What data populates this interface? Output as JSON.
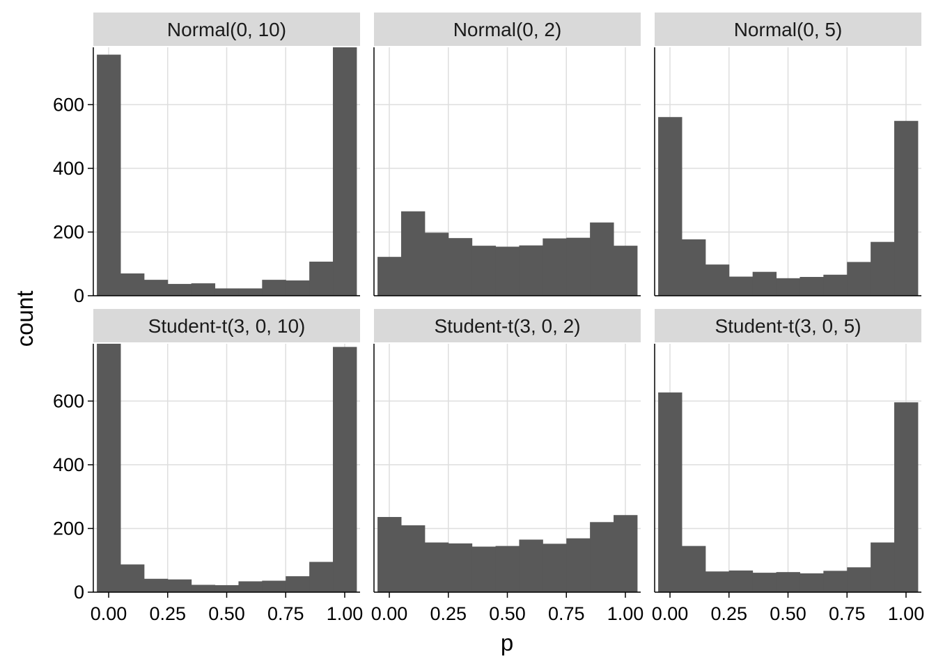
{
  "chart_data": {
    "type": "bar",
    "facet_layout": {
      "rows": 2,
      "cols": 3
    },
    "xlabel": "p",
    "ylabel": "count",
    "xlim": [
      -0.065,
      1.065
    ],
    "ylim": [
      0,
      780
    ],
    "x_ticks": [
      0,
      0.25,
      0.5,
      0.75,
      1
    ],
    "x_tick_labels": [
      "0.00",
      "0.25",
      "0.50",
      "0.75",
      "1.00"
    ],
    "y_ticks": [
      0,
      200,
      400,
      600
    ],
    "y_tick_labels": [
      "0",
      "200",
      "400",
      "600"
    ],
    "bin_centers": [
      0,
      0.1,
      0.2,
      0.3,
      0.4,
      0.5,
      0.6,
      0.7,
      0.8,
      0.9,
      1.0
    ],
    "bin_width": 0.1,
    "grid": true,
    "colors": {
      "bar": "#595959",
      "strip": "#d9d9d9",
      "grid": "#dedede",
      "axis": "#000000"
    },
    "panels": [
      {
        "title": "Normal(0, 10)",
        "values": [
          757,
          70,
          50,
          37,
          39,
          23,
          23,
          50,
          48,
          107,
          780
        ]
      },
      {
        "title": "Normal(0, 2)",
        "values": [
          122,
          265,
          198,
          181,
          157,
          154,
          158,
          180,
          182,
          230,
          157
        ]
      },
      {
        "title": "Normal(0, 5)",
        "values": [
          561,
          177,
          98,
          60,
          75,
          55,
          59,
          66,
          106,
          169,
          549
        ]
      },
      {
        "title": "Student-t(3, 0, 10)",
        "values": [
          790,
          87,
          42,
          40,
          23,
          22,
          34,
          36,
          50,
          95,
          770
        ]
      },
      {
        "title": "Student-t(3, 0, 2)",
        "values": [
          236,
          210,
          156,
          153,
          143,
          145,
          165,
          152,
          169,
          220,
          242
        ]
      },
      {
        "title": "Student-t(3, 0, 5)",
        "values": [
          627,
          145,
          65,
          68,
          61,
          63,
          59,
          67,
          78,
          156,
          596
        ]
      }
    ]
  }
}
